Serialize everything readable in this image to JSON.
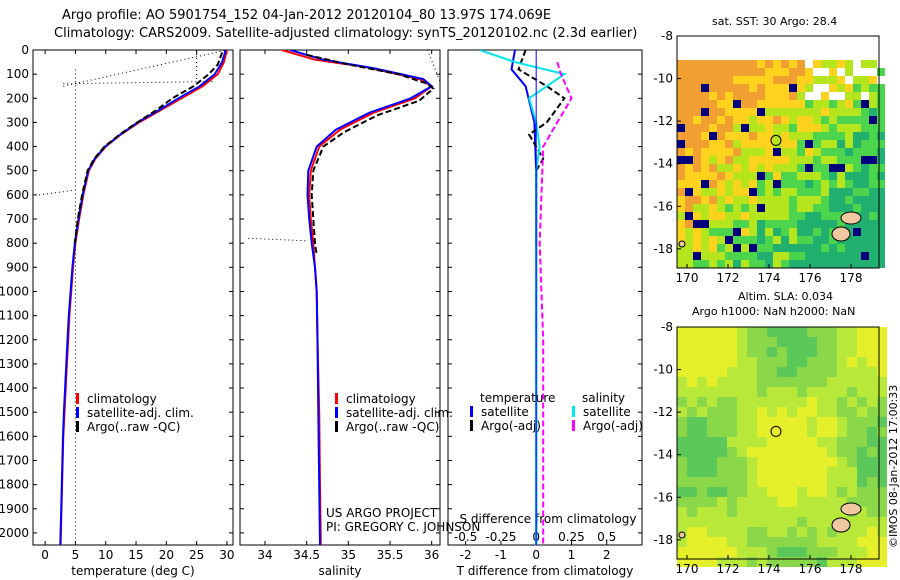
{
  "header": {
    "line1": "Argo profile: AO 5901754_152 04-Jan-2012 20120104_80 13.97S 174.069E",
    "line2": "Climatology: CARS2009. Satellite-adjusted climatology: synTS_20120102.nc (2.3d earlier)"
  },
  "colors": {
    "climatology": "#ff0000",
    "satellite": "#0000ff",
    "argo": "#000000",
    "salinity_satellite": "#00e5ee",
    "salinity_argo": "#ff00ff"
  },
  "credit": {
    "project": "US ARGO PROJECT",
    "pi": "PI: GREGORY C. JOHNSON"
  },
  "watermark": "©IMOS 08-Jan-2012 17:00:33",
  "legend_main": {
    "climatology": "climatology",
    "satellite": "satellite-adj. clim.",
    "argo": "Argo(..raw -QC)"
  },
  "legend_diff": {
    "temp_header": "temperature",
    "sal_header": "salinity",
    "satellite": "satellite",
    "argo": "Argo(-adj)",
    "sal_satellite": "satellite",
    "sal_argo": "Argo(-adj)"
  },
  "map_top": {
    "title": "sat. SST: 30 Argo: 28.4"
  },
  "map_bottom": {
    "title1": "Altim. SLA: 0.034",
    "title2": "Argo h1000: NaN h2000: NaN"
  },
  "chart_data": [
    {
      "type": "line",
      "xlabel": "temperature (deg C)",
      "ylabel": "",
      "xlim": [
        -2,
        31
      ],
      "ylim": [
        2050,
        0
      ],
      "xticks": [
        0,
        5,
        10,
        15,
        20,
        25,
        30
      ],
      "yticks": [
        0,
        100,
        200,
        300,
        400,
        500,
        600,
        700,
        800,
        900,
        1000,
        1100,
        1200,
        1300,
        1400,
        1500,
        1600,
        1700,
        1800,
        1900,
        2000
      ],
      "series": [
        {
          "name": "climatology",
          "color": "#ff0000",
          "points": [
            [
              30,
              0
            ],
            [
              29.5,
              50
            ],
            [
              28.5,
              100
            ],
            [
              26,
              150
            ],
            [
              22.5,
              200
            ],
            [
              19,
              250
            ],
            [
              15.5,
              300
            ],
            [
              12.5,
              350
            ],
            [
              10,
              400
            ],
            [
              8.3,
              450
            ],
            [
              7.2,
              500
            ],
            [
              6.3,
              600
            ],
            [
              5.6,
              700
            ],
            [
              5,
              800
            ],
            [
              4.6,
              900
            ],
            [
              4.3,
              1000
            ],
            [
              4.0,
              1100
            ],
            [
              3.8,
              1200
            ],
            [
              3.6,
              1300
            ],
            [
              3.4,
              1400
            ],
            [
              3.2,
              1500
            ],
            [
              3.0,
              1600
            ],
            [
              2.9,
              1700
            ],
            [
              2.8,
              1800
            ],
            [
              2.7,
              1900
            ],
            [
              2.6,
              2000
            ],
            [
              2.55,
              2050
            ]
          ]
        },
        {
          "name": "satellite-adj. clim.",
          "color": "#0000ff",
          "points": [
            [
              29.8,
              0
            ],
            [
              29.2,
              50
            ],
            [
              28,
              100
            ],
            [
              25.5,
              150
            ],
            [
              22,
              200
            ],
            [
              18.7,
              250
            ],
            [
              15.3,
              300
            ],
            [
              12.4,
              350
            ],
            [
              9.9,
              400
            ],
            [
              8.2,
              450
            ],
            [
              7.1,
              500
            ],
            [
              6.2,
              600
            ],
            [
              5.5,
              700
            ],
            [
              4.9,
              800
            ],
            [
              4.5,
              900
            ],
            [
              4.2,
              1000
            ],
            [
              3.9,
              1100
            ],
            [
              3.7,
              1200
            ],
            [
              3.5,
              1300
            ],
            [
              3.3,
              1400
            ],
            [
              3.1,
              1500
            ],
            [
              2.95,
              1600
            ],
            [
              2.85,
              1700
            ],
            [
              2.75,
              1800
            ],
            [
              2.65,
              1900
            ],
            [
              2.55,
              2000
            ],
            [
              2.5,
              2050
            ]
          ]
        },
        {
          "name": "Argo(..raw -QC)",
          "color": "#000000",
          "dash": true,
          "points": [
            [
              29.2,
              10
            ],
            [
              28.5,
              60
            ],
            [
              27,
              100
            ],
            [
              24.5,
              150
            ],
            [
              21,
              200
            ],
            [
              18.3,
              250
            ],
            [
              15.2,
              300
            ],
            [
              12.3,
              350
            ],
            [
              9.8,
              400
            ],
            [
              8.1,
              450
            ],
            [
              7.0,
              500
            ],
            [
              6.1,
              600
            ],
            [
              5.4,
              700
            ],
            [
              4.9,
              800
            ]
          ]
        }
      ]
    },
    {
      "type": "line",
      "xlabel": "salinity",
      "ylabel": "",
      "xlim": [
        33.7,
        36.1
      ],
      "ylim": [
        2050,
        0
      ],
      "xticks": [
        34,
        34.5,
        35,
        35.5,
        36
      ],
      "series": [
        {
          "name": "climatology",
          "color": "#ff0000",
          "points": [
            [
              34.2,
              0
            ],
            [
              34.6,
              40
            ],
            [
              35.2,
              70
            ],
            [
              35.85,
              120
            ],
            [
              36.0,
              150
            ],
            [
              35.8,
              200
            ],
            [
              35.3,
              260
            ],
            [
              34.9,
              330
            ],
            [
              34.65,
              400
            ],
            [
              34.55,
              500
            ],
            [
              34.53,
              600
            ],
            [
              34.55,
              700
            ],
            [
              34.58,
              800
            ],
            [
              34.6,
              900
            ],
            [
              34.62,
              1000
            ],
            [
              34.63,
              1200
            ],
            [
              34.65,
              1500
            ],
            [
              34.66,
              1800
            ],
            [
              34.67,
              2050
            ]
          ]
        },
        {
          "name": "satellite-adj. clim.",
          "color": "#0000ff",
          "points": [
            [
              34.3,
              0
            ],
            [
              34.7,
              40
            ],
            [
              35.3,
              75
            ],
            [
              35.9,
              120
            ],
            [
              36.0,
              150
            ],
            [
              35.75,
              200
            ],
            [
              35.25,
              260
            ],
            [
              34.85,
              330
            ],
            [
              34.62,
              400
            ],
            [
              34.52,
              500
            ],
            [
              34.51,
              600
            ],
            [
              34.53,
              700
            ],
            [
              34.56,
              800
            ],
            [
              34.6,
              900
            ],
            [
              34.62,
              1000
            ],
            [
              34.63,
              1200
            ],
            [
              34.64,
              1500
            ],
            [
              34.65,
              1800
            ],
            [
              34.66,
              2050
            ]
          ]
        },
        {
          "name": "Argo(..raw -QC)",
          "color": "#000000",
          "dash": true,
          "points": [
            [
              34.5,
              20
            ],
            [
              35.0,
              60
            ],
            [
              35.6,
              100
            ],
            [
              35.95,
              140
            ],
            [
              36.02,
              160
            ],
            [
              35.85,
              210
            ],
            [
              35.35,
              270
            ],
            [
              34.95,
              340
            ],
            [
              34.7,
              400
            ],
            [
              34.58,
              500
            ],
            [
              34.56,
              600
            ],
            [
              34.58,
              700
            ],
            [
              34.6,
              800
            ],
            [
              34.62,
              850
            ]
          ]
        }
      ]
    },
    {
      "type": "line",
      "xlabel": "T difference from climatology",
      "top_xlabel": "S difference from climatology",
      "xlim": [
        -2.5,
        3
      ],
      "xticks": [
        -2,
        -1,
        0,
        1,
        2
      ],
      "top_xticks": [
        "-0.5",
        "-0.25",
        "0",
        "0.25",
        "0.5"
      ],
      "series": [
        {
          "name": "temperature satellite",
          "color": "#0000ff",
          "points": [
            [
              -0.6,
              0
            ],
            [
              -0.7,
              80
            ],
            [
              -0.3,
              150
            ],
            [
              -0.05,
              300
            ],
            [
              0,
              500
            ],
            [
              0,
              800
            ],
            [
              0,
              1200
            ],
            [
              0,
              1600
            ],
            [
              0,
              2050
            ]
          ]
        },
        {
          "name": "temperature Argo(-adj)",
          "color": "#000000",
          "dash": true,
          "points": [
            [
              -0.3,
              0
            ],
            [
              -0.5,
              80
            ],
            [
              0.3,
              150
            ],
            [
              0.8,
              200
            ],
            [
              0.3,
              300
            ],
            [
              -0.2,
              350
            ],
            [
              0.2,
              450
            ],
            [
              0,
              500
            ],
            [
              0,
              800
            ]
          ]
        },
        {
          "name": "salinity satellite",
          "color": "#00e5ee",
          "points": [
            [
              -1.6,
              0
            ],
            [
              -0.6,
              50
            ],
            [
              0.8,
              100
            ],
            [
              0.3,
              150
            ],
            [
              -0.2,
              200
            ],
            [
              0,
              300
            ],
            [
              0.1,
              400
            ],
            [
              0,
              500
            ],
            [
              0,
              700
            ],
            [
              0,
              1000
            ],
            [
              0,
              2050
            ]
          ]
        },
        {
          "name": "salinity Argo(-adj)",
          "color": "#ff00ff",
          "dash": true,
          "points": [
            [
              0.6,
              50
            ],
            [
              0.7,
              100
            ],
            [
              1.0,
              200
            ],
            [
              0.6,
              300
            ],
            [
              0.2,
              400
            ],
            [
              0.1,
              800
            ],
            [
              0.2,
              1200
            ],
            [
              0.2,
              1600
            ],
            [
              0.2,
              2050
            ]
          ]
        }
      ]
    }
  ],
  "map_top_axes": {
    "xticks": [
      "170",
      "172",
      "174",
      "176",
      "178"
    ],
    "yticks": [
      "-8",
      "-10",
      "-12",
      "-14",
      "-16",
      "-18"
    ]
  },
  "map_bottom_axes": {
    "xticks": [
      "170",
      "172",
      "174",
      "176",
      "178"
    ],
    "yticks": [
      "-8",
      "-10",
      "-12",
      "-14",
      "-16",
      "-18"
    ]
  }
}
